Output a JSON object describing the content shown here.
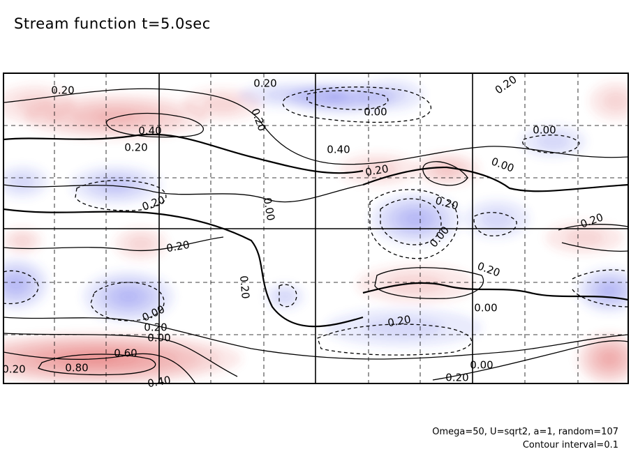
{
  "chart_data": {
    "type": "contour",
    "title": "Stream function t=5.0sec",
    "subtitle_lines": [
      "Omega=50, U=sqrt2, a=1, random=107",
      "Contour interval=0.1"
    ],
    "contour_interval": 0.1,
    "positive_color": "#e24a4a",
    "negative_color": "#4a55e6",
    "positive_line_style": "solid",
    "negative_line_style": "dashed",
    "grid": true,
    "grid_style": "dashed",
    "contour_labels": [
      {
        "text": "0.20"
      },
      {
        "text": "0.40"
      },
      {
        "text": "0.20"
      },
      {
        "text": "0.20"
      },
      {
        "text": "0.20"
      },
      {
        "text": "0.00"
      },
      {
        "text": "0.40"
      },
      {
        "text": "0.20"
      },
      {
        "text": "0.00"
      },
      {
        "text": "0.20"
      },
      {
        "text": "0.00"
      },
      {
        "text": "0.20"
      },
      {
        "text": "0.00"
      },
      {
        "text": "0.20"
      },
      {
        "text": "0.00"
      },
      {
        "text": "0.20"
      },
      {
        "text": "0.20"
      },
      {
        "text": "0.20"
      },
      {
        "text": "0.00"
      },
      {
        "text": "0.00"
      },
      {
        "text": "0.20"
      },
      {
        "text": "0.20"
      },
      {
        "text": "0.00"
      },
      {
        "text": "0.20"
      },
      {
        "text": "0.60"
      },
      {
        "text": "0.80"
      },
      {
        "text": "0.40"
      },
      {
        "text": "0.20"
      },
      {
        "text": "0.00"
      },
      {
        "text": "0.20"
      }
    ]
  }
}
